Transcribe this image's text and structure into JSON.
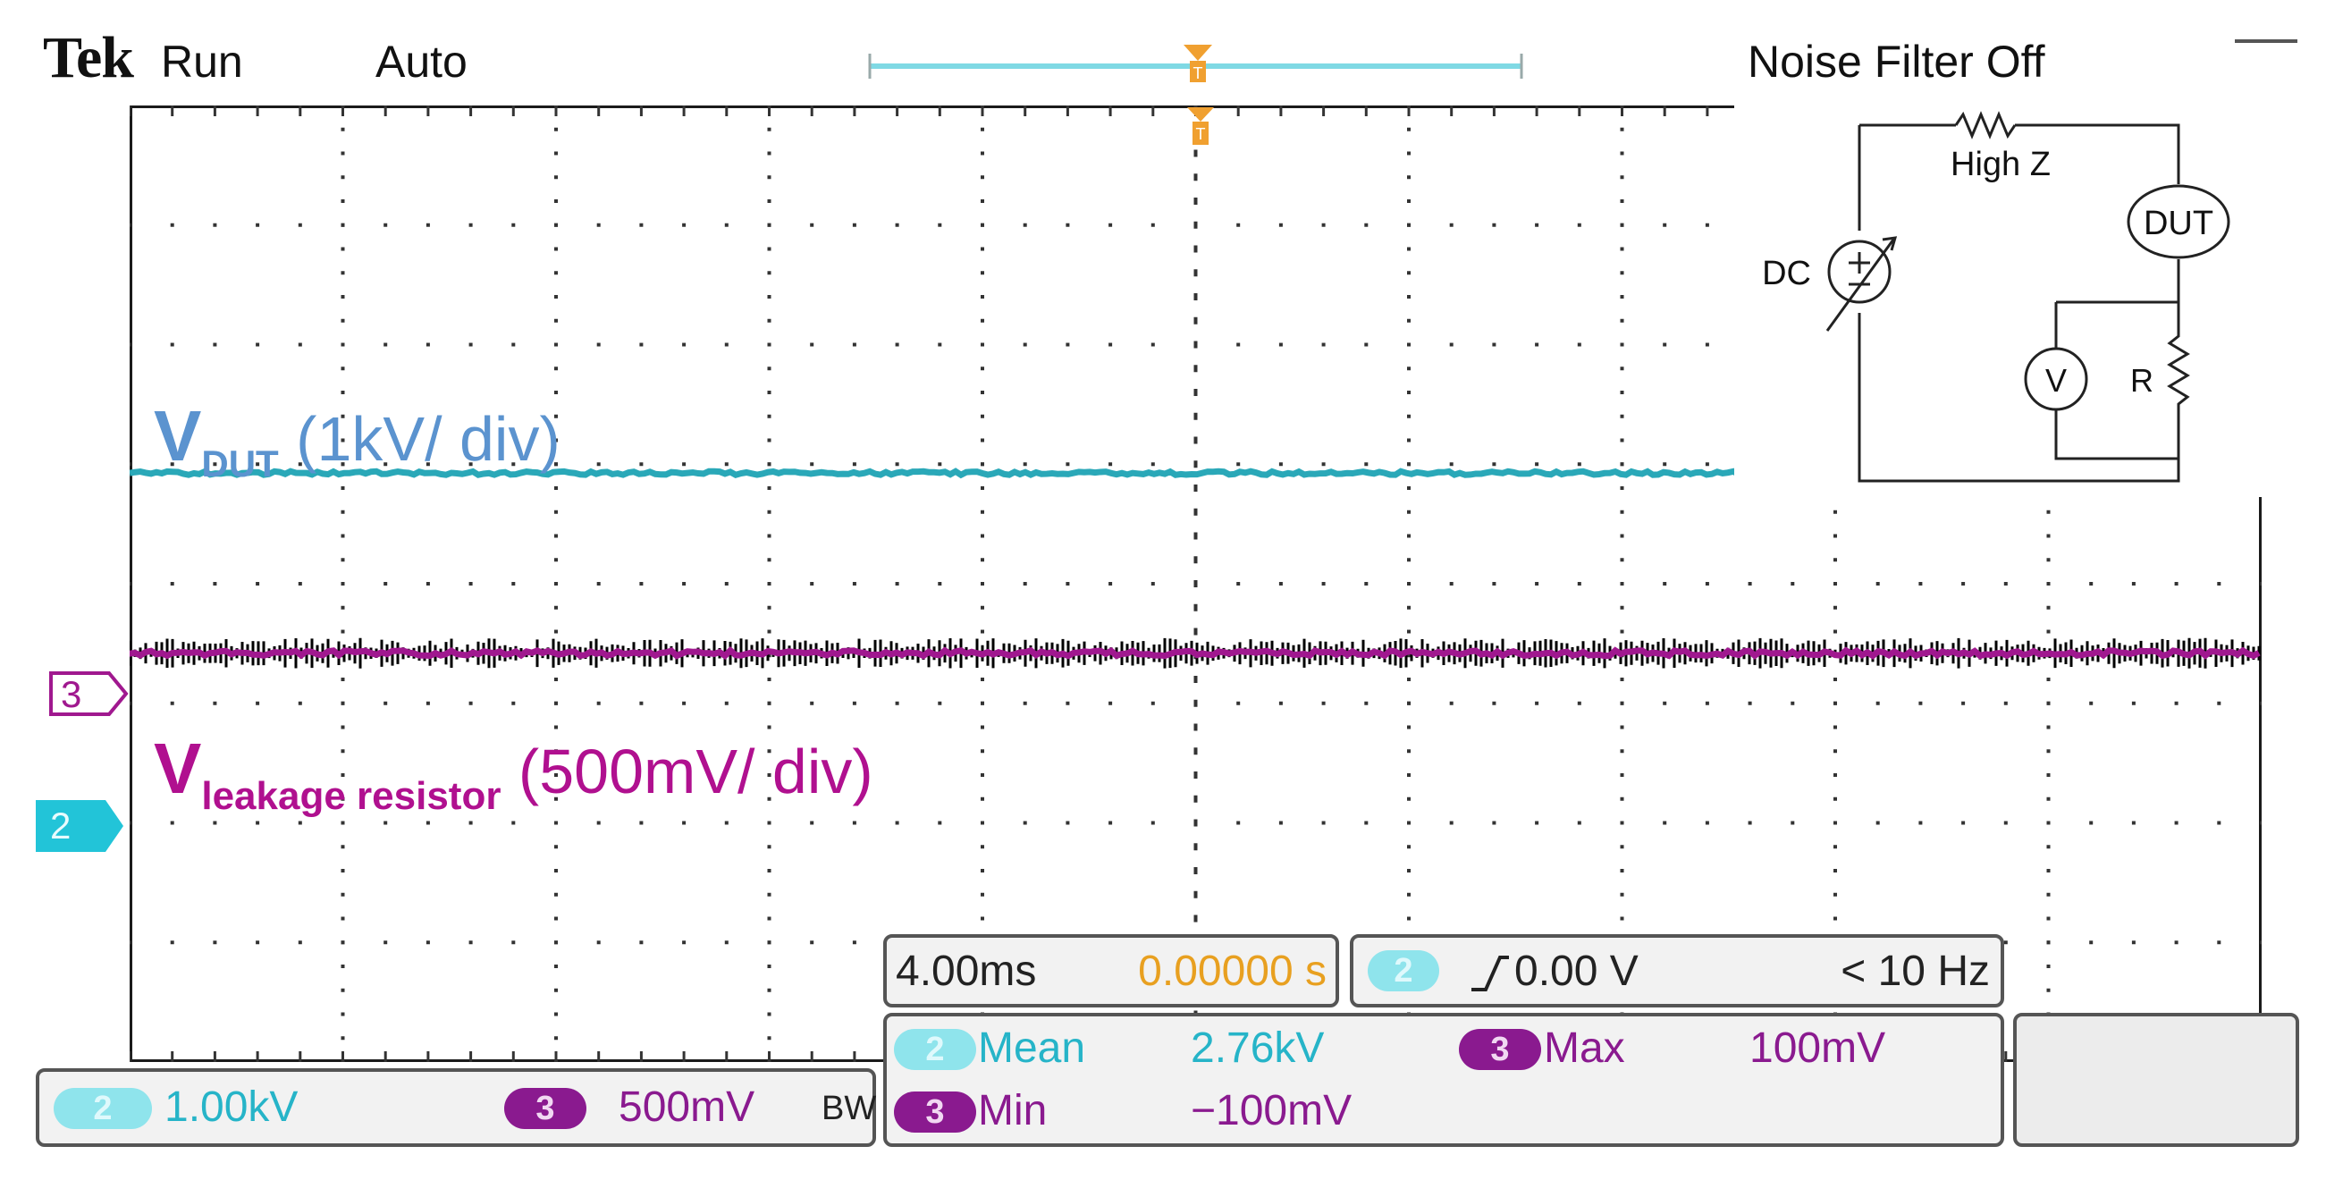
{
  "status_bar": {
    "logo": "Tek",
    "run_state": "Run",
    "acquisition_mode": "Auto",
    "noise_filter": "Noise Filter Off"
  },
  "annotations": {
    "vdut_main": "V",
    "vdut_sub": "DUT",
    "vdut_scale": " (1kV/ div)",
    "vleak_main": "V",
    "vleak_sub": "leakage resistor",
    "vleak_scale": " (500mV/ div)"
  },
  "channel_markers": {
    "ch3": "3",
    "ch2": "2"
  },
  "schematic": {
    "high_z_label": "High Z",
    "dut_label": "DUT",
    "dc_label": "DC",
    "voltmeter_label": "V",
    "resistor_label": "R"
  },
  "timebase": {
    "scale": "4.00ms",
    "position": "0.00000 s"
  },
  "trigger": {
    "channel": "2",
    "level": "0.00 V",
    "frequency": "< 10 Hz"
  },
  "measurements": [
    {
      "channel": "2",
      "name": "Mean",
      "value": "2.76kV"
    },
    {
      "channel": "3",
      "name": "Max",
      "value": "100mV"
    },
    {
      "channel": "3",
      "name": "Min",
      "value": "−100mV"
    }
  ],
  "channel_settings": {
    "ch2_badge": "2",
    "ch2_scale": "1.00kV",
    "ch3_badge": "3",
    "ch3_scale": "500mV",
    "bw_limit": "BW"
  },
  "colors": {
    "ch2_cyan": "#26b4c8",
    "ch3_magenta": "#b0108f",
    "annotation_blue": "#5b93cf",
    "trigger_orange": "#e8a020"
  }
}
